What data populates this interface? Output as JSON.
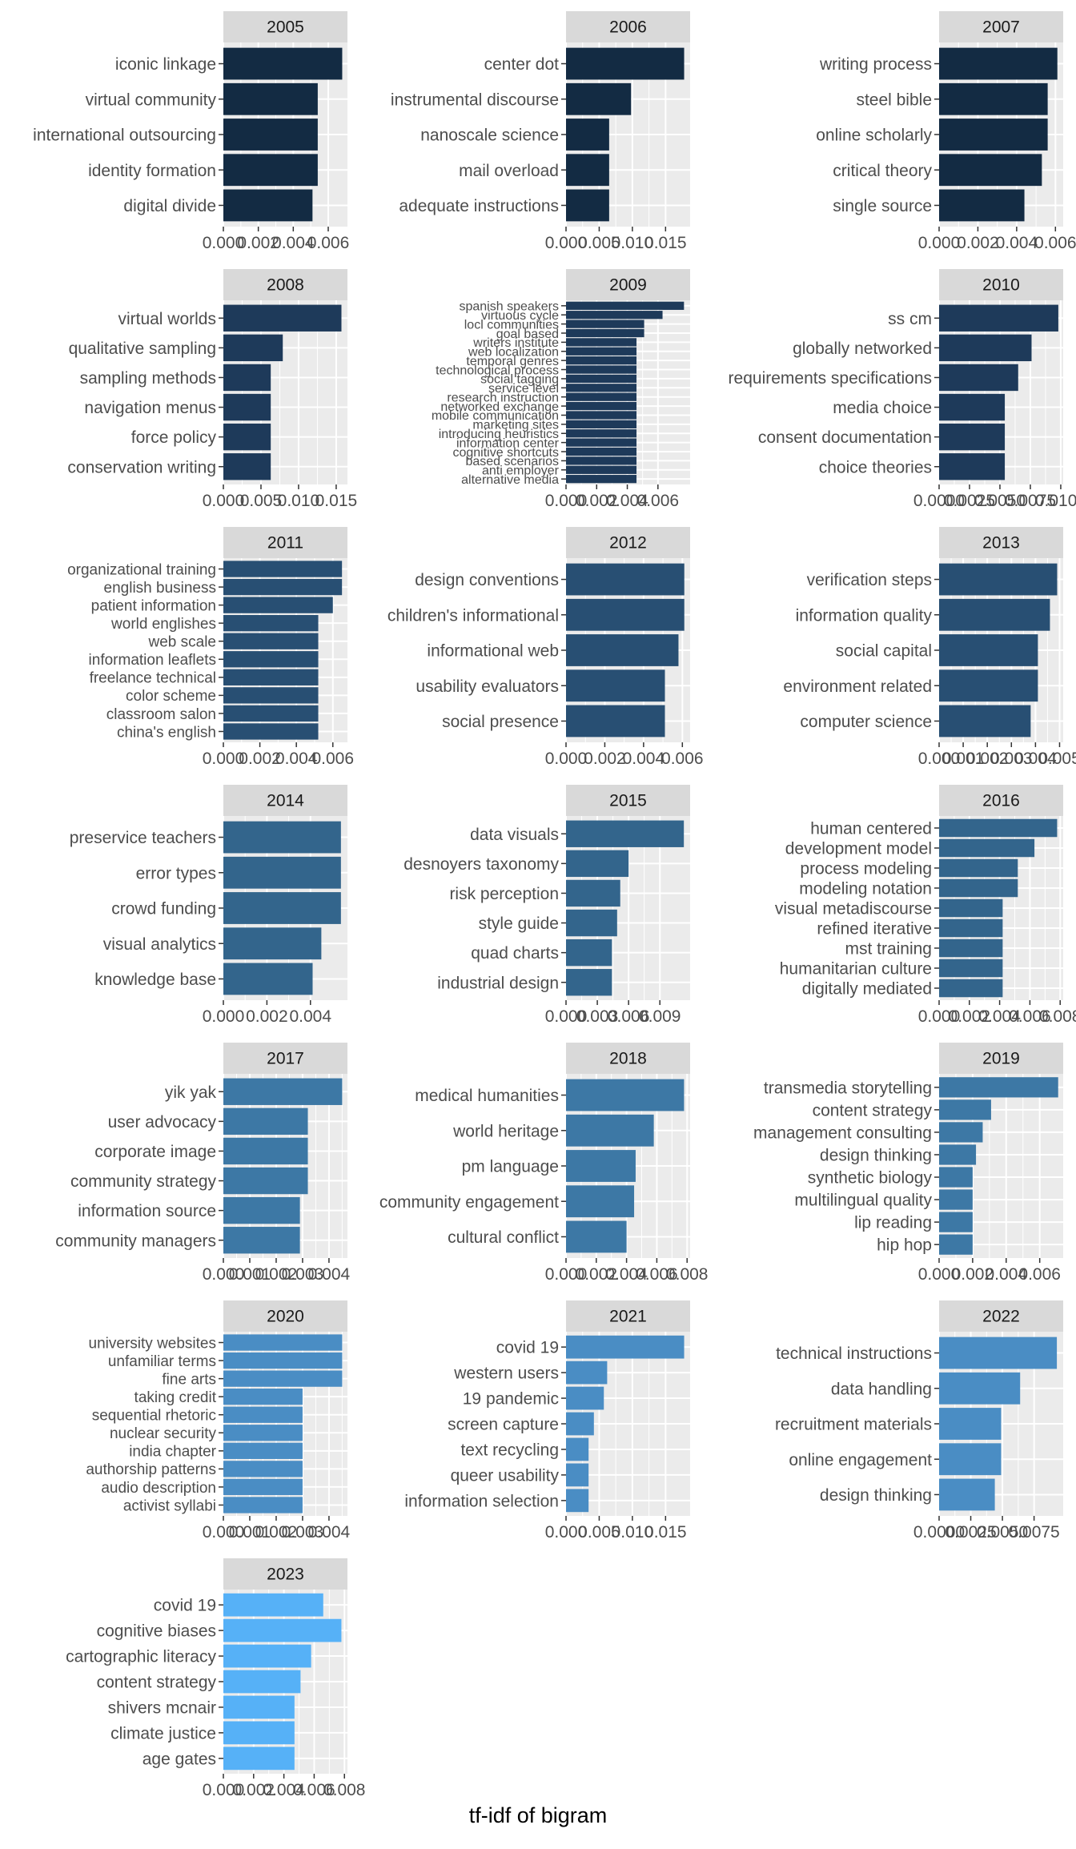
{
  "x_axis_label": "tf-idf of bigram",
  "colors": {
    "panel_bg": "#EBEBEB",
    "grid": "#FFFFFF",
    "strip_bg": "#D9D9D9",
    "text": "#4D4D4D",
    "title": "#1A1A1A",
    "ramp": [
      "#132B43",
      "#1E3A5A",
      "#284F73",
      "#33658C",
      "#3D78A5",
      "#4A8DC4",
      "#56B1F7"
    ]
  },
  "chart_data": [
    {
      "type": "bar",
      "orientation": "horizontal",
      "title": "2005",
      "categories": [
        "iconic linkage",
        "virtual community",
        "international outsourcing",
        "identity formation",
        "digital divide"
      ],
      "values": [
        0.0068,
        0.0054,
        0.0054,
        0.0054,
        0.0051
      ],
      "xlim": [
        0,
        0.0071
      ],
      "xticks": [
        0,
        0.002,
        0.004,
        0.006
      ],
      "xtick_labels": [
        "0.000",
        "0.002",
        "0.004",
        "0.006"
      ]
    },
    {
      "type": "bar",
      "orientation": "horizontal",
      "title": "2006",
      "categories": [
        "center dot",
        "instrumental discourse",
        "nanoscale science",
        "mail overload",
        "adequate instructions"
      ],
      "values": [
        0.0178,
        0.0098,
        0.0065,
        0.0065,
        0.0065
      ],
      "xlim": [
        0,
        0.0187
      ],
      "xticks": [
        0,
        0.005,
        0.01,
        0.015
      ],
      "xtick_labels": [
        "0.000",
        "0.005",
        "0.010",
        "0.015"
      ]
    },
    {
      "type": "bar",
      "orientation": "horizontal",
      "title": "2007",
      "categories": [
        "writing process",
        "steel bible",
        "online scholarly",
        "critical theory",
        "single source"
      ],
      "values": [
        0.0061,
        0.0056,
        0.0056,
        0.0053,
        0.0044
      ],
      "xlim": [
        0,
        0.0064
      ],
      "xticks": [
        0,
        0.002,
        0.004,
        0.006
      ],
      "xtick_labels": [
        "0.000",
        "0.002",
        "0.004",
        "0.006"
      ]
    },
    {
      "type": "bar",
      "orientation": "horizontal",
      "title": "2008",
      "categories": [
        "virtual worlds",
        "qualitative sampling",
        "sampling methods",
        "navigation menus",
        "force policy",
        "conservation writing"
      ],
      "values": [
        0.0157,
        0.0079,
        0.0063,
        0.0063,
        0.0063,
        0.0063
      ],
      "xlim": [
        0,
        0.0165
      ],
      "xticks": [
        0,
        0.005,
        0.01,
        0.015
      ],
      "xtick_labels": [
        "0.000",
        "0.005",
        "0.010",
        "0.015"
      ]
    },
    {
      "type": "bar",
      "orientation": "horizontal",
      "title": "2009",
      "categories": [
        "spanish speakers",
        "virtuous cycle",
        "locl communities",
        "goal based",
        "writers institute",
        "web localization",
        "temporal genres",
        "technological process",
        "social tagging",
        "service level",
        "research instruction",
        "networked exchange",
        "mobile communication",
        "marketing sites",
        "introducing heuristics",
        "information center",
        "cognitive shortcuts",
        "based scenarios",
        "anti employer",
        "alternative media"
      ],
      "values": [
        0.0077,
        0.0063,
        0.0051,
        0.0051,
        0.0046,
        0.0046,
        0.0046,
        0.0046,
        0.0046,
        0.0046,
        0.0046,
        0.0046,
        0.0046,
        0.0046,
        0.0046,
        0.0046,
        0.0046,
        0.0046,
        0.0046,
        0.0046
      ],
      "xlim": [
        0,
        0.0081
      ],
      "xticks": [
        0,
        0.002,
        0.004,
        0.006
      ],
      "xtick_labels": [
        "0.000",
        "0.002",
        "0.004",
        "0.006"
      ]
    },
    {
      "type": "bar",
      "orientation": "horizontal",
      "title": "2010",
      "categories": [
        "ss cm",
        "globally networked",
        "requirements specifications",
        "media choice",
        "consent documentation",
        "choice theories"
      ],
      "values": [
        0.0098,
        0.0076,
        0.0065,
        0.0054,
        0.0054,
        0.0054
      ],
      "xlim": [
        0,
        0.0102
      ],
      "xticks": [
        0,
        0.0025,
        0.005,
        0.0075,
        0.01
      ],
      "xtick_labels": [
        "0.0000",
        "0.0025",
        "0.0050",
        "0.0075",
        "0.0100"
      ]
    },
    {
      "type": "bar",
      "orientation": "horizontal",
      "title": "2011",
      "categories": [
        "organizational training",
        "english business",
        "patient information",
        "world englishes",
        "web scale",
        "information leaflets",
        "freelance technical",
        "color scheme",
        "classroom salon",
        "china's english"
      ],
      "values": [
        0.0065,
        0.0065,
        0.006,
        0.0052,
        0.0052,
        0.0052,
        0.0052,
        0.0052,
        0.0052,
        0.0052
      ],
      "xlim": [
        0,
        0.0068
      ],
      "xticks": [
        0,
        0.002,
        0.004,
        0.006
      ],
      "xtick_labels": [
        "0.000",
        "0.002",
        "0.004",
        "0.006"
      ]
    },
    {
      "type": "bar",
      "orientation": "horizontal",
      "title": "2012",
      "categories": [
        "design conventions",
        "children's informational",
        "informational web",
        "usability evaluators",
        "social presence"
      ],
      "values": [
        0.0061,
        0.0061,
        0.0058,
        0.0051,
        0.0051
      ],
      "xlim": [
        0,
        0.0064
      ],
      "xticks": [
        0,
        0.002,
        0.004,
        0.006
      ],
      "xtick_labels": [
        "0.000",
        "0.002",
        "0.004",
        "0.006"
      ]
    },
    {
      "type": "bar",
      "orientation": "horizontal",
      "title": "2013",
      "categories": [
        "verification steps",
        "information quality",
        "social capital",
        "environment related",
        "computer science"
      ],
      "values": [
        0.0049,
        0.0046,
        0.0041,
        0.0041,
        0.0038
      ],
      "xlim": [
        0,
        0.00515
      ],
      "xticks": [
        0,
        0.001,
        0.002,
        0.003,
        0.004,
        0.005
      ],
      "xtick_labels": [
        "0.000",
        "0.001",
        "0.002",
        "0.003",
        "0.004",
        "0.005"
      ]
    },
    {
      "type": "bar",
      "orientation": "horizontal",
      "title": "2014",
      "categories": [
        "preservice teachers",
        "error types",
        "crowd funding",
        "visual analytics",
        "knowledge base"
      ],
      "values": [
        0.0054,
        0.0054,
        0.0054,
        0.0045,
        0.0041
      ],
      "xlim": [
        0,
        0.0057
      ],
      "xticks": [
        0,
        0.002,
        0.004
      ],
      "xtick_labels": [
        "0.000",
        "0.002",
        "0.004"
      ]
    },
    {
      "type": "bar",
      "orientation": "horizontal",
      "title": "2015",
      "categories": [
        "data visuals",
        "desnoyers taxonomy",
        "risk perception",
        "style guide",
        "quad charts",
        "industrial design"
      ],
      "values": [
        0.0113,
        0.006,
        0.0052,
        0.0049,
        0.0044,
        0.0044
      ],
      "xlim": [
        0,
        0.0119
      ],
      "xticks": [
        0,
        0.003,
        0.006,
        0.009
      ],
      "xtick_labels": [
        "0.000",
        "0.003",
        "0.006",
        "0.009"
      ]
    },
    {
      "type": "bar",
      "orientation": "horizontal",
      "title": "2016",
      "categories": [
        "human centered",
        "development model",
        "process modeling",
        "modeling notation",
        "visual metadiscourse",
        "refined iterative",
        "mst training",
        "humanitarian culture",
        "digitally mediated"
      ],
      "values": [
        0.0078,
        0.0063,
        0.0052,
        0.0052,
        0.0042,
        0.0042,
        0.0042,
        0.0042,
        0.0042
      ],
      "xlim": [
        0,
        0.0082
      ],
      "xticks": [
        0,
        0.002,
        0.004,
        0.006,
        0.008
      ],
      "xtick_labels": [
        "0.000",
        "0.002",
        "0.004",
        "0.006",
        "0.008"
      ]
    },
    {
      "type": "bar",
      "orientation": "horizontal",
      "title": "2017",
      "categories": [
        "yik yak",
        "user advocacy",
        "corporate image",
        "community strategy",
        "information source",
        "community managers"
      ],
      "values": [
        0.0045,
        0.0032,
        0.0032,
        0.0032,
        0.0029,
        0.0029
      ],
      "xlim": [
        0,
        0.0047
      ],
      "xticks": [
        0,
        0.001,
        0.002,
        0.003,
        0.004,
        0.005
      ],
      "xtick_labels": [
        "0.000",
        "0.001",
        "0.002",
        "0.003",
        "0.004",
        "0.005"
      ]
    },
    {
      "type": "bar",
      "orientation": "horizontal",
      "title": "2018",
      "categories": [
        "medical humanities",
        "world heritage",
        "pm language",
        "community engagement",
        "cultural conflict"
      ],
      "values": [
        0.0078,
        0.0058,
        0.0046,
        0.0045,
        0.004
      ],
      "xlim": [
        0,
        0.0082
      ],
      "xticks": [
        0,
        0.002,
        0.004,
        0.006,
        0.008
      ],
      "xtick_labels": [
        "0.000",
        "0.002",
        "0.004",
        "0.006",
        "0.008"
      ]
    },
    {
      "type": "bar",
      "orientation": "horizontal",
      "title": "2019",
      "categories": [
        "transmedia storytelling",
        "content strategy",
        "management consulting",
        "design thinking",
        "synthetic biology",
        "multilingual quality",
        "lip reading",
        "hip hop"
      ],
      "values": [
        0.0071,
        0.0031,
        0.0026,
        0.0022,
        0.002,
        0.002,
        0.002,
        0.002
      ],
      "xlim": [
        0,
        0.0074
      ],
      "xticks": [
        0,
        0.002,
        0.004,
        0.006
      ],
      "xtick_labels": [
        "0.000",
        "0.002",
        "0.004",
        "0.006"
      ]
    },
    {
      "type": "bar",
      "orientation": "horizontal",
      "title": "2020",
      "categories": [
        "university websites",
        "unfamiliar terms",
        "fine arts",
        "taking credit",
        "sequential rhetoric",
        "nuclear security",
        "india chapter",
        "authorship patterns",
        "audio description",
        "activist syllabi"
      ],
      "values": [
        0.0045,
        0.0045,
        0.0045,
        0.003,
        0.003,
        0.003,
        0.003,
        0.003,
        0.003,
        0.003
      ],
      "xlim": [
        0,
        0.0047
      ],
      "xticks": [
        0,
        0.001,
        0.002,
        0.003,
        0.004,
        0.005
      ],
      "xtick_labels": [
        "0.000",
        "0.001",
        "0.002",
        "0.003",
        "0.004",
        "0.005"
      ]
    },
    {
      "type": "bar",
      "orientation": "horizontal",
      "title": "2021",
      "categories": [
        "covid 19",
        "western users",
        "19 pandemic",
        "screen capture",
        "text recycling",
        "queer usability",
        "information selection"
      ],
      "values": [
        0.0178,
        0.0062,
        0.0057,
        0.0042,
        0.0034,
        0.0034,
        0.0034
      ],
      "xlim": [
        0,
        0.0187
      ],
      "xticks": [
        0,
        0.005,
        0.01,
        0.015
      ],
      "xtick_labels": [
        "0.000",
        "0.005",
        "0.010",
        "0.015"
      ]
    },
    {
      "type": "bar",
      "orientation": "horizontal",
      "title": "2022",
      "categories": [
        "technical instructions",
        "data handling",
        "recruitment materials",
        "online engagement",
        "design thinking"
      ],
      "values": [
        0.0093,
        0.0064,
        0.0049,
        0.0049,
        0.0044
      ],
      "xlim": [
        0,
        0.0098
      ],
      "xticks": [
        0,
        0.0025,
        0.005,
        0.0075
      ],
      "xtick_labels": [
        "0.0000",
        "0.0025",
        "0.0050",
        "0.0075"
      ]
    },
    {
      "type": "bar",
      "orientation": "horizontal",
      "title": "2023",
      "categories": [
        "covid 19",
        "cognitive biases",
        "cartographic literacy",
        "content strategy",
        "shivers mcnair",
        "climate justice",
        "age gates"
      ],
      "values": [
        0.0066,
        0.0078,
        0.0058,
        0.0051,
        0.0047,
        0.0047,
        0.0047
      ],
      "xlim": [
        0,
        0.0082
      ],
      "xticks": [
        0,
        0.002,
        0.004,
        0.006,
        0.008
      ],
      "xtick_labels": [
        "0.000",
        "0.002",
        "0.004",
        "0.006",
        "0.008"
      ]
    }
  ]
}
